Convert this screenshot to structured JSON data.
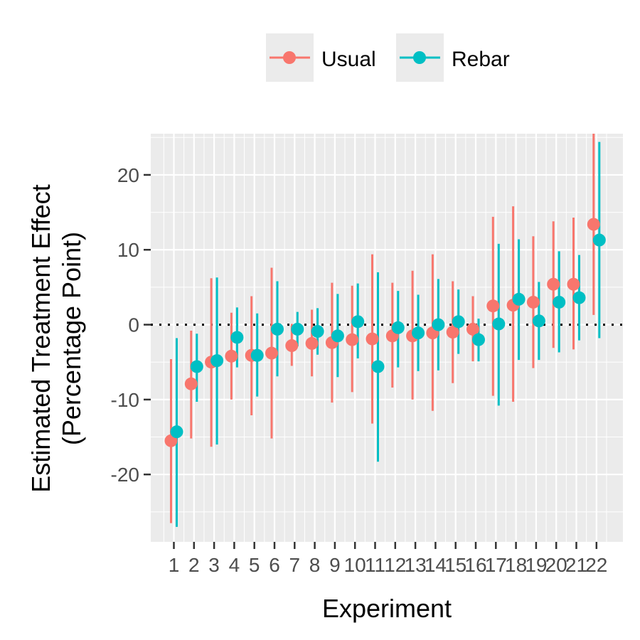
{
  "chart_data": {
    "type": "scatter",
    "subtype": "point-range",
    "xlabel": "Experiment",
    "ylabel_lines": [
      "Estimated Treatment Effect",
      "(Percentage Point)"
    ],
    "categories": [
      "1",
      "2",
      "3",
      "4",
      "5",
      "6",
      "7",
      "8",
      "9",
      "10",
      "11",
      "12",
      "13",
      "14",
      "15",
      "16",
      "17",
      "18",
      "19",
      "20",
      "21",
      "22"
    ],
    "yticks": [
      20,
      10,
      0,
      -10,
      -20
    ],
    "ylim": [
      -29,
      25.5
    ],
    "grid": true,
    "reference_line": 0,
    "legend": {
      "position": "top"
    },
    "series": [
      {
        "name": "Usual",
        "color": "#F8766D",
        "values": [
          -15.5,
          -7.9,
          -5.0,
          -4.2,
          -4.1,
          -3.8,
          -2.8,
          -2.5,
          -2.4,
          -2.0,
          -1.9,
          -1.5,
          -1.5,
          -1.1,
          -1.0,
          -0.6,
          2.5,
          2.6,
          3.0,
          5.4,
          5.4,
          13.4
        ],
        "lower": [
          -26.5,
          -15.2,
          -16.3,
          -10.0,
          -12.1,
          -15.2,
          -5.5,
          -6.9,
          -10.4,
          -9.0,
          -13.2,
          -8.4,
          -10.0,
          -11.5,
          -7.8,
          -4.9,
          -9.5,
          -10.3,
          -5.8,
          -3.1,
          -3.3,
          1.3
        ],
        "upper": [
          -4.6,
          -0.8,
          6.2,
          1.6,
          3.8,
          7.6,
          0.1,
          2.0,
          5.6,
          5.2,
          9.4,
          5.6,
          7.2,
          9.4,
          5.8,
          3.8,
          14.4,
          15.8,
          11.8,
          13.8,
          14.3,
          25.5
        ]
      },
      {
        "name": "Rebar",
        "color": "#00BFC4",
        "values": [
          -14.3,
          -5.6,
          -4.8,
          -1.7,
          -4.1,
          -0.6,
          -0.6,
          -0.9,
          -1.5,
          0.4,
          -5.6,
          -0.4,
          -1.1,
          0.0,
          0.4,
          -2.0,
          0.1,
          3.4,
          0.5,
          3.0,
          3.6,
          11.3
        ],
        "lower": [
          -27.0,
          -10.3,
          -16.0,
          -5.7,
          -9.6,
          -6.9,
          -2.9,
          -4.0,
          -7.0,
          -4.5,
          -18.3,
          -5.7,
          -6.2,
          -6.1,
          -3.9,
          -4.9,
          -10.8,
          -4.7,
          -4.7,
          -3.7,
          -2.1,
          -1.8
        ],
        "upper": [
          -1.8,
          -1.2,
          6.3,
          2.3,
          1.5,
          5.8,
          1.7,
          2.2,
          4.1,
          5.5,
          7.0,
          4.5,
          4.0,
          6.1,
          4.7,
          0.8,
          10.8,
          11.4,
          5.7,
          9.8,
          9.3,
          24.4
        ]
      }
    ]
  }
}
